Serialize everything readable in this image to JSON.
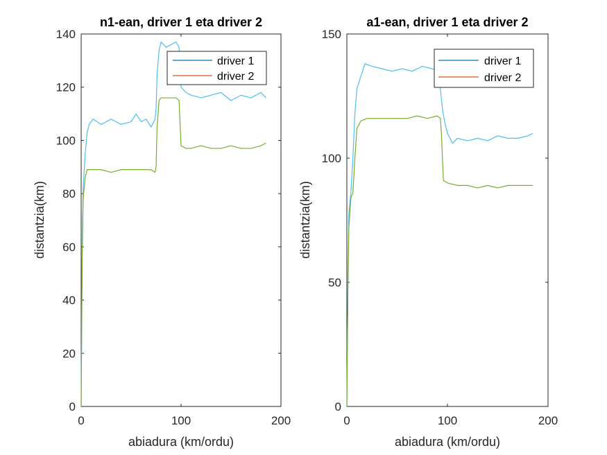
{
  "chart_data": [
    {
      "type": "line",
      "title": "n1-ean, driver 1 eta driver 2",
      "xlabel": "abiadura (km/ordu)",
      "ylabel": "distantzia(km)",
      "xlim": [
        0,
        200
      ],
      "ylim": [
        0,
        140
      ],
      "xticks": [
        "0",
        "100",
        "200"
      ],
      "yticks": [
        "0",
        "20",
        "40",
        "60",
        "80",
        "100",
        "120",
        "140"
      ],
      "grid": false,
      "legend_location": "top-right",
      "series": [
        {
          "name": "driver 1",
          "color": "#4DBEEE",
          "legend_color": "#0072BD",
          "x": [
            0,
            1,
            2,
            4,
            6,
            8,
            12,
            20,
            30,
            40,
            50,
            55,
            60,
            65,
            70,
            74,
            75,
            76,
            78,
            80,
            85,
            90,
            95,
            98,
            100,
            105,
            110,
            120,
            130,
            140,
            150,
            160,
            170,
            180,
            185
          ],
          "y": [
            0,
            60,
            82,
            95,
            103,
            106,
            108,
            106,
            108,
            106,
            107,
            110,
            107,
            108,
            105,
            108,
            112,
            125,
            134,
            137,
            135,
            136,
            137,
            135,
            120,
            118,
            117,
            116,
            117,
            118,
            115,
            117,
            116,
            118,
            116
          ]
        },
        {
          "name": "driver 2",
          "color": "#77AC30",
          "legend_color": "#D95319",
          "x": [
            0,
            1,
            2,
            4,
            6,
            8,
            12,
            20,
            30,
            40,
            50,
            60,
            70,
            74,
            75,
            76,
            78,
            80,
            85,
            90,
            95,
            98,
            100,
            105,
            110,
            120,
            130,
            140,
            150,
            160,
            170,
            180,
            185
          ],
          "y": [
            0,
            55,
            78,
            86,
            89,
            89,
            89,
            89,
            88,
            89,
            89,
            89,
            89,
            88,
            90,
            105,
            115,
            116,
            116,
            116,
            116,
            115,
            98,
            97,
            97,
            98,
            97,
            97,
            98,
            97,
            97,
            98,
            99
          ]
        }
      ]
    },
    {
      "type": "line",
      "title": "a1-ean, driver 1 eta driver 2",
      "xlabel": "abiadura (km/ordu)",
      "ylabel": "distantzia(km)",
      "xlim": [
        0,
        200
      ],
      "ylim": [
        0,
        150
      ],
      "xticks": [
        "0",
        "100",
        "200"
      ],
      "yticks": [
        "0",
        "50",
        "100",
        "150"
      ],
      "grid": false,
      "legend_location": "top-right",
      "series": [
        {
          "name": "driver 1",
          "color": "#4DBEEE",
          "legend_color": "#0072BD",
          "x": [
            0,
            1,
            2,
            4,
            6,
            8,
            10,
            14,
            18,
            25,
            35,
            45,
            55,
            65,
            75,
            85,
            90,
            93,
            95,
            97,
            100,
            105,
            110,
            120,
            130,
            140,
            150,
            160,
            170,
            180,
            185
          ],
          "y": [
            0,
            50,
            78,
            86,
            100,
            118,
            128,
            133,
            138,
            137,
            136,
            135,
            136,
            135,
            137,
            136,
            135,
            128,
            120,
            115,
            110,
            106,
            108,
            107,
            108,
            107,
            109,
            108,
            108,
            109,
            110
          ]
        },
        {
          "name": "driver 2",
          "color": "#77AC30",
          "legend_color": "#D95319",
          "x": [
            0,
            1,
            2,
            4,
            6,
            8,
            10,
            14,
            20,
            30,
            40,
            50,
            60,
            70,
            80,
            90,
            93,
            94,
            95,
            96,
            100,
            110,
            120,
            130,
            140,
            150,
            160,
            170,
            180,
            185
          ],
          "y": [
            0,
            45,
            72,
            84,
            86,
            100,
            112,
            115,
            116,
            116,
            116,
            116,
            116,
            117,
            116,
            117,
            116,
            110,
            100,
            91,
            90,
            89,
            89,
            88,
            89,
            88,
            89,
            89,
            89,
            89
          ]
        }
      ]
    }
  ]
}
